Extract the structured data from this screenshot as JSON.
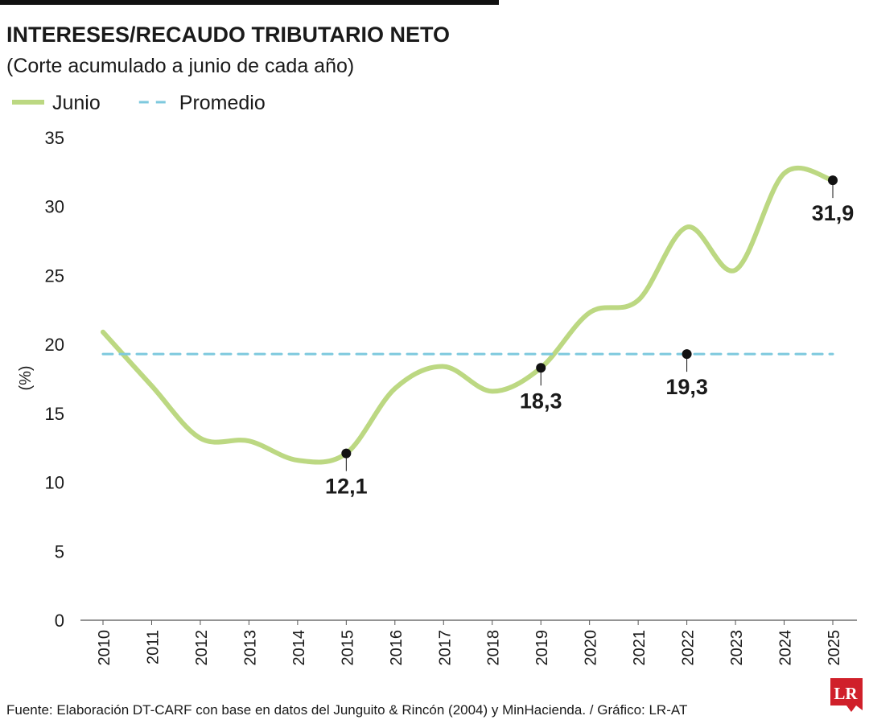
{
  "chart_data": {
    "type": "line",
    "title": "INTERESES/RECAUDO TRIBUTARIO NETO",
    "subtitle": "(Corte acumulado a junio de cada año)",
    "y_label": "(%)",
    "source": "Fuente: Elaboración DT-CARF con base en datos del Junguito & Rincón (2004) y MinHacienda. / Gráfico: LR-AT",
    "logo": "LR",
    "categories": [
      "2010",
      "2011",
      "2012",
      "2013",
      "2014",
      "2015",
      "2016",
      "2017",
      "2018",
      "2019",
      "2020",
      "2021",
      "2022",
      "2023",
      "2024",
      "2025"
    ],
    "series": [
      {
        "name": "Junio",
        "color": "#bcd882",
        "style": "solid",
        "values": [
          20.9,
          17.0,
          13.2,
          13.0,
          11.6,
          12.1,
          16.8,
          18.4,
          16.6,
          18.3,
          22.3,
          23.2,
          28.5,
          25.4,
          32.4,
          31.9
        ],
        "value_labels": [
          null,
          null,
          null,
          null,
          null,
          "12,1",
          null,
          null,
          null,
          "18,3",
          null,
          null,
          null,
          null,
          null,
          "31,9"
        ]
      },
      {
        "name": "Promedio",
        "color": "#7ec9de",
        "style": "dashed",
        "values": [
          19.3,
          19.3,
          19.3,
          19.3,
          19.3,
          19.3,
          19.3,
          19.3,
          19.3,
          19.3,
          19.3,
          19.3,
          19.3,
          19.3,
          19.3,
          19.3
        ],
        "value_labels": [
          null,
          null,
          null,
          null,
          null,
          null,
          null,
          null,
          null,
          null,
          null,
          null,
          "19,3",
          null,
          null,
          null
        ]
      }
    ],
    "ylim": [
      0,
      35
    ],
    "yticks": [
      0,
      5,
      10,
      15,
      20,
      25,
      30,
      35
    ],
    "grid": false
  }
}
